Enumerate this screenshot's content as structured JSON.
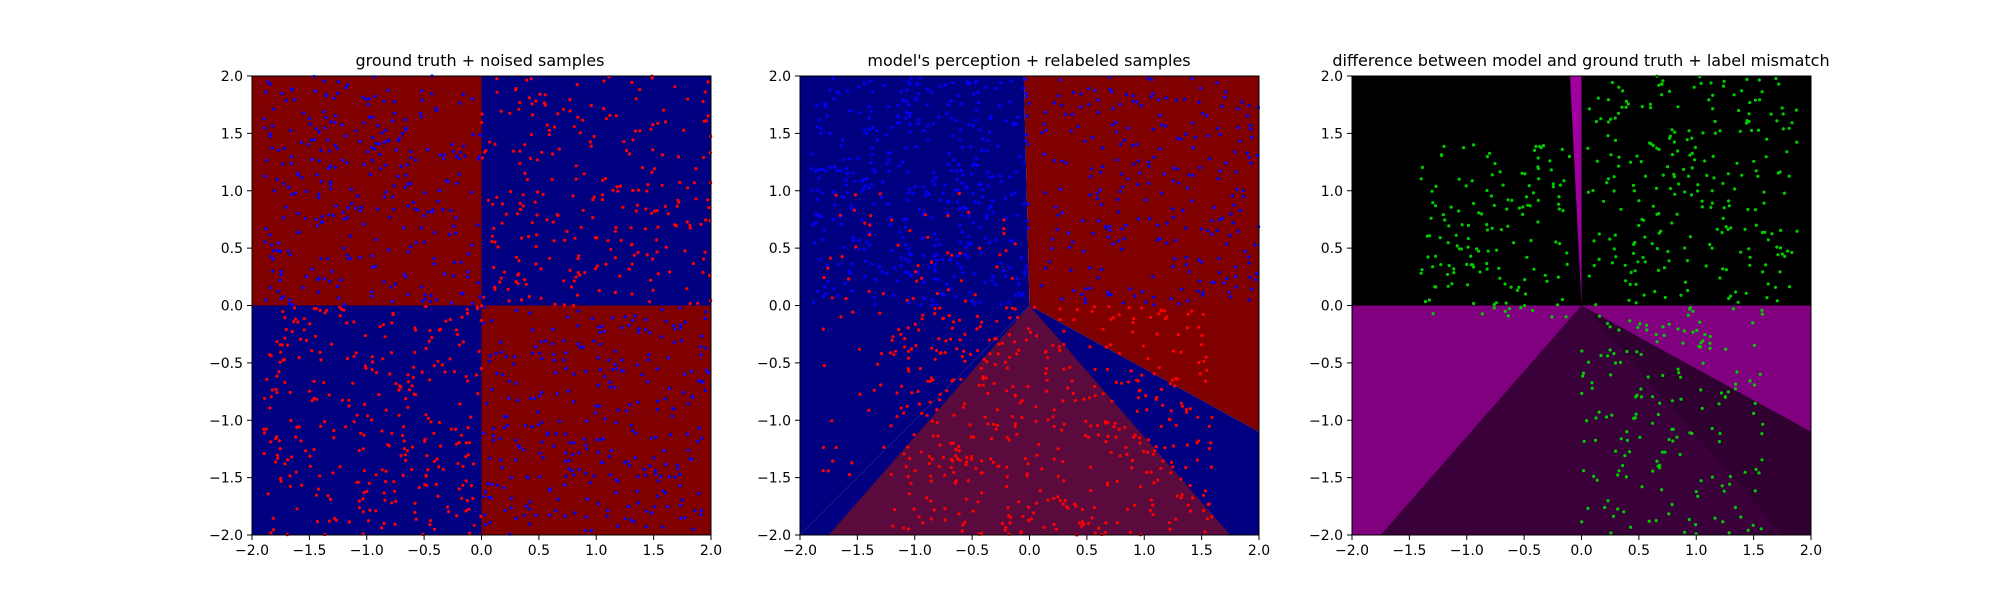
{
  "chart_data": [
    {
      "type": "heatmap",
      "title": "ground truth + noised samples",
      "xlim": [
        -2.0,
        2.0
      ],
      "ylim": [
        -2.0,
        2.0
      ],
      "xticks": [
        "−2.0",
        "−1.5",
        "−1.0",
        "−0.5",
        "0.0",
        "0.5",
        "1.0",
        "1.5",
        "2.0"
      ],
      "yticks": [
        "−2.0",
        "−1.5",
        "−1.0",
        "−0.5",
        "0.0",
        "0.5",
        "1.0",
        "1.5",
        "2.0"
      ],
      "regions": [
        {
          "x": [
            -2.0,
            0.0
          ],
          "y": [
            0.0,
            2.0
          ],
          "color": "#800000"
        },
        {
          "x": [
            0.0,
            2.0
          ],
          "y": [
            0.0,
            2.0
          ],
          "color": "#000080"
        },
        {
          "x": [
            -2.0,
            0.0
          ],
          "y": [
            -2.0,
            0.0
          ],
          "color": "#000080"
        },
        {
          "x": [
            0.0,
            2.0
          ],
          "y": [
            -2.0,
            0.0
          ],
          "color": "#800000"
        }
      ],
      "samples": [
        {
          "color": "#ff0000",
          "count": 300,
          "x": [
            -1.9,
            0.0
          ],
          "y": [
            -2.0,
            0.0
          ]
        },
        {
          "color": "#ff0000",
          "count": 260,
          "x": [
            0.0,
            2.0
          ],
          "y": [
            0.0,
            2.0
          ]
        },
        {
          "color": "#0000ff",
          "count": 300,
          "x": [
            -1.9,
            0.0
          ],
          "y": [
            0.0,
            2.0
          ]
        },
        {
          "color": "#0000ff",
          "count": 300,
          "x": [
            0.0,
            2.0
          ],
          "y": [
            -2.0,
            0.0
          ]
        }
      ]
    },
    {
      "type": "heatmap",
      "title": "model's perception + relabeled samples",
      "xlim": [
        -2.0,
        2.0
      ],
      "ylim": [
        -2.0,
        2.0
      ],
      "xticks": [
        "−2.0",
        "−1.5",
        "−1.0",
        "−0.5",
        "0.0",
        "0.5",
        "1.0",
        "1.5",
        "2.0"
      ],
      "yticks": [
        "−2.0",
        "−1.5",
        "−1.0",
        "−0.5",
        "0.0",
        "0.5",
        "1.0",
        "1.5",
        "2.0"
      ],
      "regions": [
        {
          "polygon": [
            [
              -2.0,
              2.0
            ],
            [
              -0.05,
              2.0
            ],
            [
              0.0,
              0.0
            ],
            [
              -2.0,
              -2.0
            ]
          ],
          "color": "#000080"
        },
        {
          "polygon": [
            [
              -0.05,
              2.0
            ],
            [
              2.0,
              2.0
            ],
            [
              2.0,
              -1.1
            ],
            [
              0.0,
              0.0
            ]
          ],
          "color": "#800000"
        },
        {
          "polygon": [
            [
              0.0,
              0.0
            ],
            [
              2.0,
              -1.1
            ],
            [
              2.0,
              -2.0
            ],
            [
              -2.0,
              -2.0
            ]
          ],
          "color": "#000080"
        },
        {
          "polygon": [
            [
              0.0,
              0.0
            ],
            [
              1.75,
              -2.0
            ],
            [
              -1.75,
              -2.0
            ]
          ],
          "color": "#5a0a3c"
        }
      ],
      "samples": [
        {
          "color": "#0000ff",
          "count": 420,
          "x": [
            -1.9,
            0.0
          ],
          "y": [
            0.0,
            2.0
          ]
        },
        {
          "color": "#ff0000",
          "count": 420,
          "x": [
            -1.2,
            1.6
          ],
          "y": [
            -2.0,
            0.0
          ]
        },
        {
          "color": "#0000ff",
          "count": 250,
          "x": [
            0.1,
            2.0
          ],
          "y": [
            0.0,
            2.0
          ]
        },
        {
          "color": "#ff0000",
          "count": 130,
          "x": [
            -1.8,
            -0.1
          ],
          "y": [
            -1.5,
            1.0
          ]
        }
      ]
    },
    {
      "type": "heatmap",
      "title": "difference between model and ground truth + label mismatch",
      "xlim": [
        -2.0,
        2.0
      ],
      "ylim": [
        -2.0,
        2.0
      ],
      "xticks": [
        "−2.0",
        "−1.5",
        "−1.0",
        "−0.5",
        "0.0",
        "0.5",
        "1.0",
        "1.5",
        "2.0"
      ],
      "yticks": [
        "−2.0",
        "−1.5",
        "−1.0",
        "−0.5",
        "0.0",
        "0.5",
        "1.0",
        "1.5",
        "2.0"
      ],
      "regions": [
        {
          "x": [
            -2.0,
            2.0
          ],
          "y": [
            0.0,
            2.0
          ],
          "color": "#000000"
        },
        {
          "polygon": [
            [
              -0.1,
              2.0
            ],
            [
              0.0,
              2.0
            ],
            [
              0.0,
              0.0
            ]
          ],
          "color": "#a000a0"
        },
        {
          "x": [
            -2.0,
            2.0
          ],
          "y": [
            -2.0,
            0.0
          ],
          "color": "#800080"
        },
        {
          "polygon": [
            [
              0.0,
              0.0
            ],
            [
              2.0,
              -1.1
            ],
            [
              2.0,
              -2.0
            ],
            [
              1.75,
              -2.0
            ]
          ],
          "color": "#300030"
        },
        {
          "polygon": [
            [
              0.0,
              0.0
            ],
            [
              1.75,
              -2.0
            ],
            [
              -1.75,
              -2.0
            ]
          ],
          "color": "#3a003a"
        }
      ],
      "samples": [
        {
          "color": "#00cc00",
          "count": 150,
          "x": [
            -1.4,
            -0.1
          ],
          "y": [
            -0.1,
            1.4
          ]
        },
        {
          "color": "#00cc00",
          "count": 250,
          "x": [
            0.05,
            1.9
          ],
          "y": [
            0.0,
            2.0
          ]
        },
        {
          "color": "#00cc00",
          "count": 170,
          "x": [
            0.0,
            1.6
          ],
          "y": [
            -2.0,
            0.0
          ]
        }
      ]
    }
  ]
}
